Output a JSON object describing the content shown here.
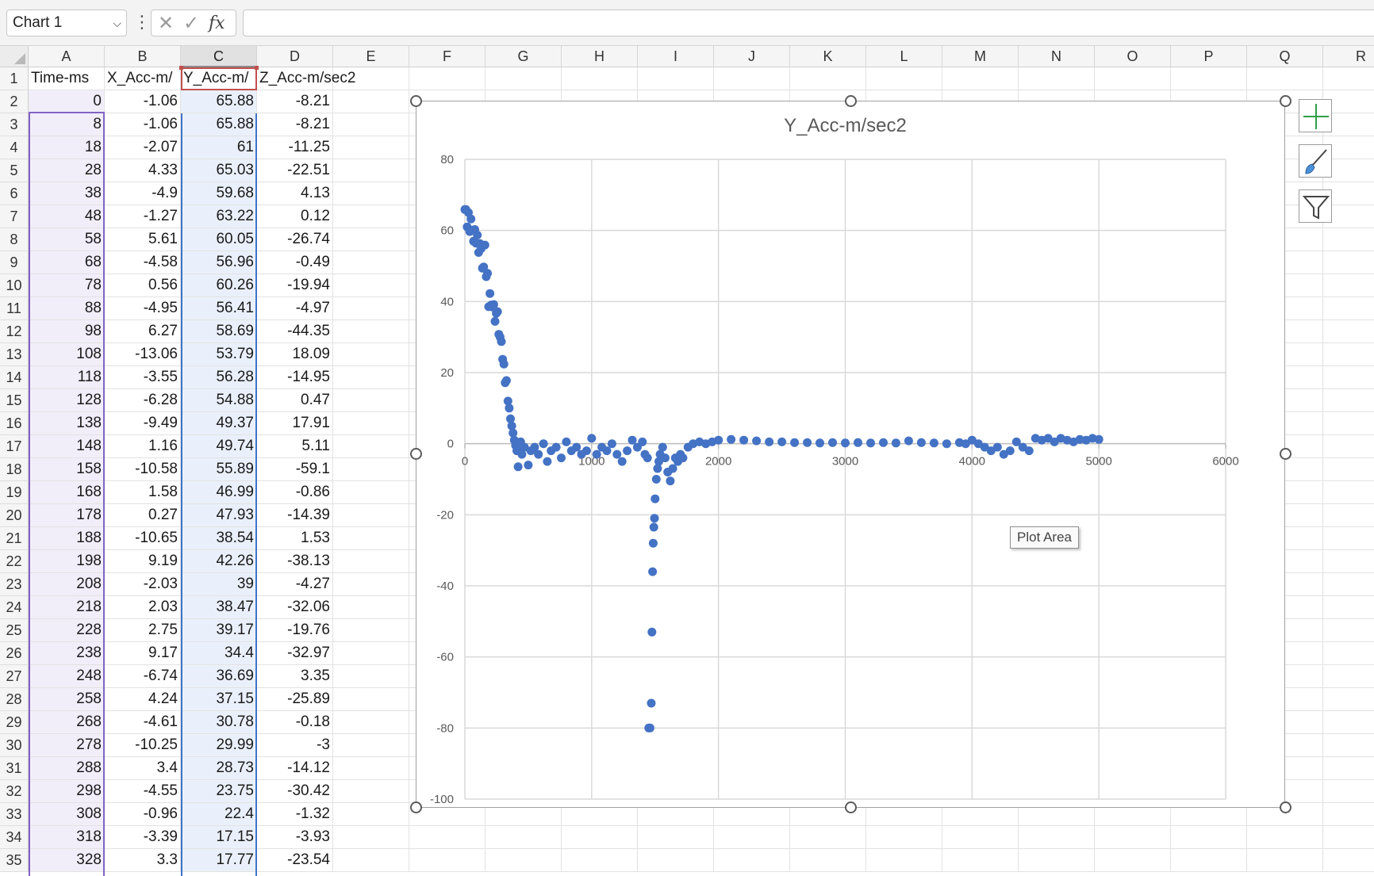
{
  "formula_bar": {
    "name_box": "Chart 1",
    "fx_label": "fx",
    "formula_value": ""
  },
  "columns": [
    "A",
    "B",
    "C",
    "D",
    "E",
    "F",
    "G",
    "H",
    "I",
    "J",
    "K",
    "L",
    "M",
    "N",
    "O",
    "P",
    "Q",
    "R"
  ],
  "header_row": [
    "Time-ms",
    "X_Acc-m/",
    "Y_Acc-m/",
    "Z_Acc-m/sec2"
  ],
  "rows": [
    [
      0,
      -1.06,
      65.88,
      -8.21
    ],
    [
      8,
      -1.06,
      65.88,
      -8.21
    ],
    [
      18,
      -2.07,
      61,
      -11.25
    ],
    [
      28,
      4.33,
      65.03,
      -22.51
    ],
    [
      38,
      -4.9,
      59.68,
      4.13
    ],
    [
      48,
      -1.27,
      63.22,
      0.12
    ],
    [
      58,
      5.61,
      60.05,
      -26.74
    ],
    [
      68,
      -4.58,
      56.96,
      -0.49
    ],
    [
      78,
      0.56,
      60.26,
      -19.94
    ],
    [
      88,
      -4.95,
      56.41,
      -4.97
    ],
    [
      98,
      6.27,
      58.69,
      -44.35
    ],
    [
      108,
      -13.06,
      53.79,
      18.09
    ],
    [
      118,
      -3.55,
      56.28,
      -14.95
    ],
    [
      128,
      -6.28,
      54.88,
      0.47
    ],
    [
      138,
      -9.49,
      49.37,
      17.91
    ],
    [
      148,
      1.16,
      49.74,
      5.11
    ],
    [
      158,
      -10.58,
      55.89,
      -59.1
    ],
    [
      168,
      1.58,
      46.99,
      -0.86
    ],
    [
      178,
      0.27,
      47.93,
      -14.39
    ],
    [
      188,
      -10.65,
      38.54,
      1.53
    ],
    [
      198,
      9.19,
      42.26,
      -38.13
    ],
    [
      208,
      -2.03,
      39,
      -4.27
    ],
    [
      218,
      2.03,
      38.47,
      -32.06
    ],
    [
      228,
      2.75,
      39.17,
      -19.76
    ],
    [
      238,
      9.17,
      34.4,
      -32.97
    ],
    [
      248,
      -6.74,
      36.69,
      3.35
    ],
    [
      258,
      4.24,
      37.15,
      -25.89
    ],
    [
      268,
      -4.61,
      30.78,
      -0.18
    ],
    [
      278,
      -10.25,
      29.99,
      -3
    ],
    [
      288,
      3.4,
      28.73,
      -14.12
    ],
    [
      298,
      -4.55,
      23.75,
      -30.42
    ],
    [
      308,
      -0.96,
      22.4,
      -1.32
    ],
    [
      318,
      -3.39,
      17.15,
      -3.93
    ],
    [
      328,
      3.3,
      17.77,
      -23.54
    ]
  ],
  "tooltip": "Plot Area",
  "chart_buttons": [
    "chart-elements-button",
    "chart-styles-button",
    "chart-filters-button"
  ],
  "colors": {
    "marker": "#4472c4",
    "gridline": "#d9d9d9",
    "axis": "#bfbfbf"
  },
  "chart_data": {
    "type": "scatter",
    "title": "Y_Acc-m/sec2",
    "xlabel": "",
    "ylabel": "",
    "xlim": [
      0,
      6000
    ],
    "ylim": [
      -100,
      80
    ],
    "x_ticks": [
      0,
      1000,
      2000,
      3000,
      4000,
      5000,
      6000
    ],
    "y_ticks": [
      80,
      60,
      40,
      20,
      0,
      -20,
      -40,
      -60,
      -80,
      -100
    ],
    "grid": true,
    "legend": "none",
    "series": [
      {
        "points": [
          [
            0,
            65.88
          ],
          [
            8,
            65.88
          ],
          [
            18,
            61
          ],
          [
            28,
            65.03
          ],
          [
            38,
            59.68
          ],
          [
            48,
            63.22
          ],
          [
            58,
            60.05
          ],
          [
            68,
            56.96
          ],
          [
            78,
            60.26
          ],
          [
            88,
            56.41
          ],
          [
            98,
            58.69
          ],
          [
            108,
            53.79
          ],
          [
            118,
            56.28
          ],
          [
            128,
            54.88
          ],
          [
            138,
            49.37
          ],
          [
            148,
            49.74
          ],
          [
            158,
            55.89
          ],
          [
            168,
            46.99
          ],
          [
            178,
            47.93
          ],
          [
            188,
            38.54
          ],
          [
            198,
            42.26
          ],
          [
            208,
            39
          ],
          [
            218,
            38.47
          ],
          [
            228,
            39.17
          ],
          [
            238,
            34.4
          ],
          [
            248,
            36.69
          ],
          [
            258,
            37.15
          ],
          [
            268,
            30.78
          ],
          [
            278,
            29.99
          ],
          [
            288,
            28.73
          ],
          [
            298,
            23.75
          ],
          [
            308,
            22.4
          ],
          [
            318,
            17.15
          ],
          [
            328,
            17.77
          ],
          [
            340,
            12
          ],
          [
            350,
            10
          ],
          [
            360,
            7
          ],
          [
            370,
            5
          ],
          [
            380,
            3
          ],
          [
            390,
            1
          ],
          [
            400,
            -0.5
          ],
          [
            410,
            -2
          ],
          [
            420,
            -6.5
          ],
          [
            430,
            -1
          ],
          [
            440,
            0.5
          ],
          [
            450,
            -3
          ],
          [
            470,
            -1
          ],
          [
            500,
            -6
          ],
          [
            520,
            -2
          ],
          [
            550,
            -1
          ],
          [
            580,
            -3
          ],
          [
            620,
            0
          ],
          [
            650,
            -5
          ],
          [
            680,
            -2
          ],
          [
            720,
            -1
          ],
          [
            760,
            -4
          ],
          [
            800,
            0.5
          ],
          [
            840,
            -2
          ],
          [
            880,
            -1
          ],
          [
            920,
            -3
          ],
          [
            960,
            -2
          ],
          [
            1000,
            1.5
          ],
          [
            1040,
            -3
          ],
          [
            1080,
            -1
          ],
          [
            1120,
            -2
          ],
          [
            1160,
            0
          ],
          [
            1200,
            -3
          ],
          [
            1240,
            -5
          ],
          [
            1280,
            -2
          ],
          [
            1320,
            1
          ],
          [
            1360,
            -1
          ],
          [
            1400,
            0.5
          ],
          [
            1420,
            -3
          ],
          [
            1440,
            -4
          ],
          [
            1450,
            -80
          ],
          [
            1460,
            -80
          ],
          [
            1470,
            -73
          ],
          [
            1475,
            -53
          ],
          [
            1480,
            -36
          ],
          [
            1485,
            -28
          ],
          [
            1490,
            -23.5
          ],
          [
            1495,
            -21
          ],
          [
            1500,
            -15.5
          ],
          [
            1510,
            -10
          ],
          [
            1520,
            -7
          ],
          [
            1530,
            -5
          ],
          [
            1540,
            -3
          ],
          [
            1560,
            -1
          ],
          [
            1580,
            -4
          ],
          [
            1600,
            -8
          ],
          [
            1620,
            -10.5
          ],
          [
            1640,
            -7
          ],
          [
            1660,
            -4
          ],
          [
            1680,
            -5
          ],
          [
            1700,
            -3
          ],
          [
            1720,
            -4
          ],
          [
            1760,
            -1
          ],
          [
            1800,
            0
          ],
          [
            1850,
            0.5
          ],
          [
            1900,
            0
          ],
          [
            1950,
            0.5
          ],
          [
            2000,
            1
          ],
          [
            2100,
            1.2
          ],
          [
            2200,
            1
          ],
          [
            2300,
            0.8
          ],
          [
            2400,
            0.5
          ],
          [
            2500,
            0.5
          ],
          [
            2600,
            0.3
          ],
          [
            2700,
            0.3
          ],
          [
            2800,
            0.2
          ],
          [
            2900,
            0.3
          ],
          [
            3000,
            0.2
          ],
          [
            3100,
            0.3
          ],
          [
            3200,
            0.2
          ],
          [
            3300,
            0.3
          ],
          [
            3400,
            0.2
          ],
          [
            3500,
            0.8
          ],
          [
            3600,
            0.3
          ],
          [
            3700,
            0.2
          ],
          [
            3800,
            0
          ],
          [
            3900,
            0.3
          ],
          [
            3950,
            0
          ],
          [
            4000,
            1
          ],
          [
            4050,
            0
          ],
          [
            4100,
            -1
          ],
          [
            4150,
            -2
          ],
          [
            4200,
            -1
          ],
          [
            4250,
            -3
          ],
          [
            4300,
            -2
          ],
          [
            4350,
            0.5
          ],
          [
            4400,
            -1
          ],
          [
            4450,
            -2
          ],
          [
            4500,
            1.5
          ],
          [
            4550,
            1
          ],
          [
            4600,
            1.5
          ],
          [
            4650,
            0.5
          ],
          [
            4700,
            1.5
          ],
          [
            4750,
            1
          ],
          [
            4800,
            0.5
          ],
          [
            4850,
            1.2
          ],
          [
            4900,
            1
          ],
          [
            4950,
            1.5
          ],
          [
            5000,
            1.2
          ]
        ]
      }
    ]
  }
}
